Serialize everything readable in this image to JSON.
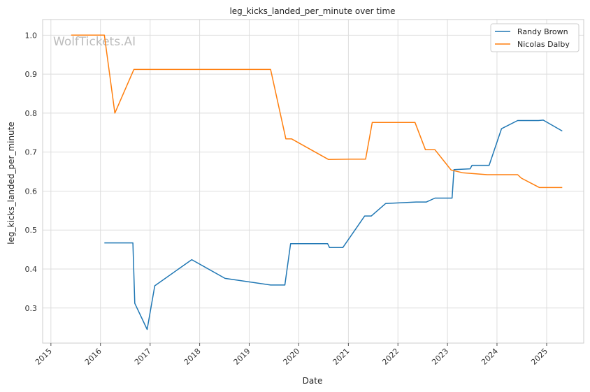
{
  "chart_data": {
    "type": "line",
    "title": "leg_kicks_landed_per_minute over time",
    "xlabel": "Date",
    "ylabel": "leg_kicks_landed_per_minute",
    "watermark": "WolfTickets.AI",
    "legend_position": "top-right",
    "grid": true,
    "x_type": "date",
    "xlim": [
      "2014-11-01",
      "2025-10-01"
    ],
    "ylim": [
      0.21,
      1.04
    ],
    "x_ticks": [
      "2015",
      "2016",
      "2017",
      "2018",
      "2019",
      "2020",
      "2021",
      "2022",
      "2023",
      "2024",
      "2025"
    ],
    "y_ticks": [
      0.3,
      0.4,
      0.5,
      0.6,
      0.7,
      0.8,
      0.9,
      1.0
    ],
    "y_tick_labels": [
      "0.3",
      "0.4",
      "0.5",
      "0.6",
      "0.7",
      "0.8",
      "0.9",
      "1.0"
    ],
    "series": [
      {
        "name": "Randy Brown",
        "color": "#1f77b4",
        "x": [
          "2016-01-30",
          "2016-08-27",
          "2016-09-10",
          "2016-12-10",
          "2017-02-04",
          "2017-11-04",
          "2018-07-07",
          "2019-06-08",
          "2019-09-21",
          "2019-11-02",
          "2020-08-01",
          "2020-08-15",
          "2020-11-21",
          "2021-05-01",
          "2021-06-19",
          "2021-10-02",
          "2022-05-14",
          "2022-07-30",
          "2022-10-01",
          "2023-02-04",
          "2023-02-18",
          "2023-06-17",
          "2023-07-01",
          "2023-11-04",
          "2024-02-03",
          "2024-06-01",
          "2024-11-02",
          "2024-12-07",
          "2025-04-26"
        ],
        "y": [
          0.467,
          0.467,
          0.312,
          0.245,
          0.357,
          0.424,
          0.376,
          0.359,
          0.359,
          0.465,
          0.465,
          0.455,
          0.455,
          0.536,
          0.536,
          0.568,
          0.572,
          0.572,
          0.582,
          0.582,
          0.655,
          0.657,
          0.666,
          0.666,
          0.76,
          0.781,
          0.781,
          0.782,
          0.754
        ]
      },
      {
        "name": "Nicolas Dalby",
        "color": "#ff7f0e",
        "x": [
          "2015-05-30",
          "2016-01-30",
          "2016-04-16",
          "2016-09-03",
          "2019-06-08",
          "2019-09-28",
          "2019-11-09",
          "2020-08-08",
          "2021-01-16",
          "2021-05-08",
          "2021-06-26",
          "2022-05-07",
          "2022-07-23",
          "2022-10-01",
          "2023-01-28",
          "2023-04-22",
          "2023-10-21",
          "2024-06-01",
          "2024-06-29",
          "2024-11-09",
          "2025-04-26"
        ],
        "y": [
          1.0,
          1.0,
          0.8,
          0.912,
          0.912,
          0.734,
          0.734,
          0.681,
          0.682,
          0.682,
          0.776,
          0.776,
          0.706,
          0.706,
          0.654,
          0.647,
          0.642,
          0.642,
          0.633,
          0.609,
          0.609
        ]
      }
    ]
  }
}
